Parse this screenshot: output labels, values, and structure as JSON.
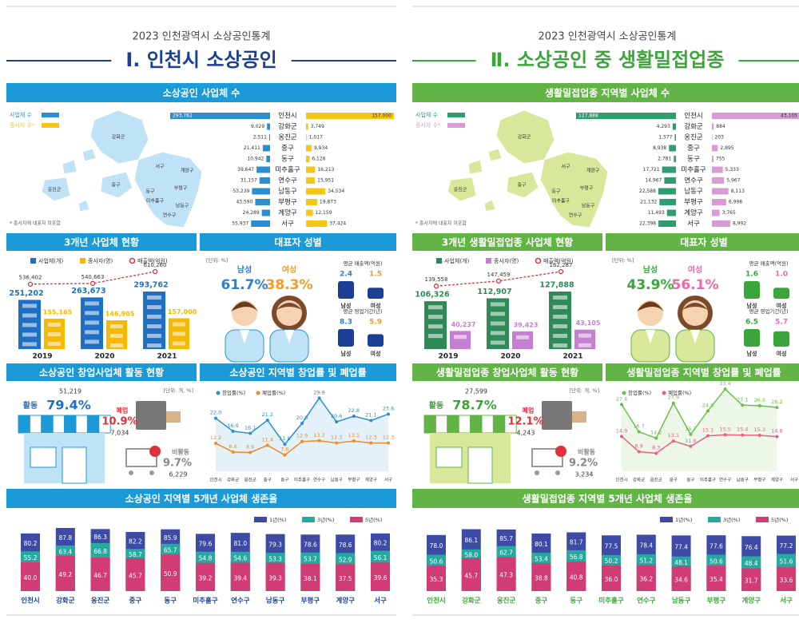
{
  "panels": [
    {
      "year_title": "2023 인천광역시 소상공인통계",
      "title": "Ⅰ. 인천시 소상공인",
      "color": "#1b3f94",
      "banner_color": "#1c9ad8",
      "map_color": "#bfe2f7",
      "regions": [
        "인천시",
        "강화군",
        "옹진군",
        "중구",
        "동구",
        "미추홀구",
        "연수구",
        "남동구",
        "부평구",
        "계양구",
        "서구"
      ],
      "counts": {
        "title": "소상공인 사업체 수",
        "map_labels": [
          "강화군",
          "옹진군",
          "중구",
          "서구",
          "계양구",
          "부평구",
          "남동구",
          "연수구",
          "미추홀구",
          "동구"
        ],
        "note": "* 종사자에 대표자 미포함",
        "series": [
          {
            "name": "사업체 수",
            "color": "#2a8fd0",
            "values": [
              293762,
              9029,
              2511,
              21411,
              10942,
              39647,
              31157,
              53239,
              43590,
              24289,
              55937
            ],
            "value_labels": [
              "293,762",
              "9,029",
              "2,511",
              "21,411",
              "10,942",
              "39,647",
              "31,157",
              "53,239",
              "43,590",
              "24,289",
              "55,937"
            ]
          },
          {
            "name": "종사자 수*",
            "color": "#f5c518",
            "values": [
              157000,
              3749,
              1017,
              9934,
              6126,
              16213,
              15951,
              34534,
              19873,
              12159,
              37424
            ],
            "value_labels": [
              "157,000",
              "3,749",
              "1,017",
              "9,934",
              "6,126",
              "16,213",
              "15,951",
              "34,534",
              "19,873",
              "12,159",
              "37,424"
            ]
          }
        ]
      },
      "three_year": {
        "title": "3개년 사업체 현황",
        "categories": [
          "2019",
          "2020",
          "2021"
        ],
        "series": [
          {
            "name": "사업체(개)",
            "color": "#1f6fc4",
            "values": [
              251202,
              263673,
              293762
            ],
            "value_labels": [
              "251,202",
              "263,673",
              "293,762"
            ]
          },
          {
            "name": "종사자(명)",
            "color": "#f6b800",
            "values": [
              155165,
              146905,
              157000
            ],
            "value_labels": [
              "155,165",
              "146,905",
              "157,000"
            ]
          },
          {
            "name": "매출액(억원)",
            "color": "#e0303c",
            "values": [
              536402,
              540663,
              610260
            ],
            "value_labels": [
              "536,402",
              "540,663",
              "610,260"
            ]
          }
        ]
      },
      "gender": {
        "title": "대표자 성별",
        "unit": "[단위: %]",
        "labels": [
          "남성",
          "여성"
        ],
        "colors": [
          "#2b7fd0",
          "#f29b2a"
        ],
        "values": [
          61.7,
          38.3
        ],
        "value_labels": [
          "61.7%",
          "38.3%"
        ],
        "sales": {
          "title": "평균 매출액(억원)",
          "values": [
            2.4,
            1.5
          ]
        },
        "period": {
          "title": "평균 영업기간(년)",
          "values": [
            8.3,
            5.9
          ]
        }
      },
      "activity": {
        "title": "소상공인 창업사업체 활동 현황",
        "unit": "[단위: 개, %]",
        "items": [
          {
            "name": "활동",
            "color": "#1f6fc4",
            "value": 79.4,
            "value_label": "79.4%",
            "count": 51219,
            "count_label": "51,219"
          },
          {
            "name": "폐업",
            "color": "#e0303c",
            "value": 10.9,
            "value_label": "10.9%",
            "count": 7034,
            "count_label": "7,034"
          },
          {
            "name": "비활동",
            "color": "#888888",
            "value": 9.7,
            "value_label": "9.7%",
            "count": 6229,
            "count_label": "6,229"
          }
        ]
      },
      "rates": {
        "title": "소상공인 지역별 창업률 및 폐업률",
        "series": [
          {
            "name": "창업률(%)",
            "color": "#2a8fd0",
            "values": [
              22.0,
              16.9,
              16.1,
              21.2,
              11.8,
              20.0,
              29.9,
              20.6,
              22.8,
              21.1,
              23.6
            ],
            "value_labels": [
              "22.0",
              "16.9",
              "16.1",
              "21.2",
              "11.8",
              "20.0",
              "29.9",
              "20.6",
              "22.8",
              "21.1",
              "23.6"
            ]
          },
          {
            "name": "폐업률(%)",
            "color": "#f08a2a",
            "values": [
              12.2,
              8.8,
              8.6,
              11.4,
              7.6,
              12.9,
              13.2,
              12.3,
              13.1,
              12.3,
              12.3
            ]
          }
        ]
      },
      "survival": {
        "title": "소상공인 지역별 5개년 사업체 생존율",
        "series": [
          {
            "name": "1년(%)",
            "color": "#3d4aa6",
            "values": [
              80.2,
              87.8,
              86.3,
              82.2,
              85.9,
              79.6,
              81.0,
              79.3,
              78.6,
              78.6,
              80.2
            ],
            "value_labels": [
              "80.2",
              "87.8",
              "86.3",
              "82.2",
              "85.9",
              "79.6",
              "81.0",
              "79.3",
              "78.6",
              "78.6",
              "80.2"
            ]
          },
          {
            "name": "3년(%)",
            "color": "#27a9a0",
            "values": [
              55.2,
              63.4,
              66.8,
              58.7,
              65.7,
              54.8,
              54.6,
              53.3,
              53.7,
              52.9,
              56.1
            ]
          },
          {
            "name": "5년(%)",
            "color": "#d23c74",
            "values": [
              40.0,
              49.2,
              46.7,
              45.7,
              50.9,
              39.2,
              39.4,
              39.3,
              38.1,
              37.5,
              39.6
            ],
            "value_labels": [
              "40.0",
              "49.2",
              "46.7",
              "45.7",
              "50.9",
              "39.2",
              "39.4",
              "39.3",
              "38.1",
              "37.5",
              "39.6"
            ]
          }
        ]
      }
    },
    {
      "year_title": "2023 인천광역시 소상공인통계",
      "title": "Ⅱ. 소상공인 중 생활밀접업종",
      "color": "#3aa53a",
      "banner_color": "#62b446",
      "map_color": "#d7e89a",
      "regions": [
        "인천시",
        "강화군",
        "옹진군",
        "중구",
        "동구",
        "미추홀구",
        "연수구",
        "남동구",
        "부평구",
        "계양구",
        "서구"
      ],
      "counts": {
        "title": "생활밀접업종 지역별 사업체 수",
        "map_labels": [
          "강화군",
          "옹진군",
          "중구",
          "서구",
          "계양구",
          "부평구",
          "남동구",
          "연수구",
          "미추홀구",
          "동구"
        ],
        "note": "* 종사자에 대표자 미포함",
        "series": [
          {
            "name": "사업체 수",
            "color": "#2e9e6e",
            "values": [
              127888,
              4293,
              1577,
              8938,
              2781,
              17721,
              14967,
              22588,
              21132,
              11493,
              22398
            ],
            "value_labels": [
              "127,888",
              "4,293",
              "1,577",
              "8,938",
              "2,781",
              "17,721",
              "14,967",
              "22,588",
              "21,132",
              "11,493",
              "22,398"
            ]
          },
          {
            "name": "종사자 수*",
            "color": "#d89bd3",
            "values": [
              43105,
              884,
              203,
              2895,
              755,
              5333,
              5967,
              8113,
              6998,
              3765,
              8992
            ],
            "value_labels": [
              "43,105",
              "884",
              "203",
              "2,895",
              "755",
              "5,333",
              "5,967",
              "8,113",
              "6,998",
              "3,765",
              "8,992"
            ]
          }
        ]
      },
      "three_year": {
        "title": "3개년 생활밀접업종 사업체 현황",
        "categories": [
          "2019",
          "2020",
          "2021"
        ],
        "series": [
          {
            "name": "사업체(개)",
            "color": "#2e8b57",
            "values": [
              106326,
              112907,
              127888
            ],
            "value_labels": [
              "106,326",
              "112,907",
              "127,888"
            ]
          },
          {
            "name": "종사자(명)",
            "color": "#c57fd1",
            "values": [
              40237,
              39423,
              43105
            ],
            "value_labels": [
              "40,237",
              "39,423",
              "43,105"
            ]
          },
          {
            "name": "매출액(억원)",
            "color": "#e0303c",
            "values": [
              139558,
              147459,
              162287
            ],
            "value_labels": [
              "139,558",
              "147,459",
              "162,287"
            ]
          }
        ]
      },
      "gender": {
        "title": "대표자 성별",
        "unit": "[단위: %]",
        "labels": [
          "남성",
          "여성"
        ],
        "colors": [
          "#3aa53a",
          "#e86aa6"
        ],
        "values": [
          43.9,
          56.1
        ],
        "value_labels": [
          "43.9%",
          "56.1%"
        ],
        "sales": {
          "title": "평균 매출액(억원)",
          "values": [
            1.6,
            1.0
          ],
          "value_labels": [
            "1.6",
            "1.0"
          ]
        },
        "period": {
          "title": "평균 영업기간(년)",
          "values": [
            6.5,
            5.7
          ]
        }
      },
      "activity": {
        "title": "생활밀접업종 창업사업체 활동 현황",
        "unit": "[단위: 개, %]",
        "items": [
          {
            "name": "활동",
            "color": "#3aa53a",
            "value": 78.7,
            "value_label": "78.7%",
            "count": 27599,
            "count_label": "27,599"
          },
          {
            "name": "폐업",
            "color": "#e0303c",
            "value": 12.1,
            "value_label": "12.1%",
            "count": 4243,
            "count_label": "4,243"
          },
          {
            "name": "비활동",
            "color": "#888888",
            "value": 9.2,
            "value_label": "9.2%",
            "count": 3234,
            "count_label": "3,234"
          }
        ]
      },
      "rates": {
        "title": "생활밀접업종 지역별 창업률 및 폐업률",
        "series": [
          {
            "name": "창업률(%)",
            "color": "#6abf4b",
            "values": [
              27.4,
              16.7,
              14.2,
              27.9,
              15.7,
              24.9,
              33.4,
              27.1,
              26.9,
              26.2,
              null
            ]
          },
          {
            "name": "폐업률(%)",
            "color": "#e8608a",
            "values": [
              14.9,
              8.9,
              8.3,
              13.1,
              11.0,
              15.1,
              15.5,
              15.4,
              15.3,
              14.8,
              null
            ],
            "value_labels": [
              "14.9",
              "8.9",
              "8.3",
              "13.1",
              "11.0",
              "15.1",
              "15.5",
              "15.4",
              "15.3",
              "14.8",
              null
            ]
          }
        ]
      },
      "survival": {
        "title": "생활밀접업종 지역별 5개년 사업체 생존율",
        "series": [
          {
            "name": "1년(%)",
            "color": "#3d4aa6",
            "values": [
              78.0,
              86.1,
              85.7,
              80.1,
              81.7,
              77.5,
              78.4,
              77.4,
              77.6,
              76.4,
              77.2
            ],
            "value_labels": [
              "78.0",
              "86.1",
              "85.7",
              "80.1",
              "81.7",
              "77.5",
              "78.4",
              "77.4",
              "77.6",
              "76.4",
              "77.2"
            ]
          },
          {
            "name": "3년(%)",
            "color": "#27a9a0",
            "values": [
              50.6,
              58.0,
              62.7,
              53.4,
              56.8,
              50.2,
              51.2,
              48.1,
              50.6,
              48.4,
              51.6
            ],
            "value_labels": [
              "50.6",
              "58.0",
              "62.7",
              "53.4",
              "56.8",
              "50.2",
              "51.2",
              "48.1",
              "50.6",
              "48.4",
              "51.6"
            ]
          },
          {
            "name": "5년(%)",
            "color": "#d23c74",
            "values": [
              35.3,
              45.7,
              47.3,
              38.8,
              40.8,
              36.0,
              36.2,
              34.6,
              35.4,
              31.7,
              33.6
            ],
            "value_labels": [
              "35.3",
              "45.7",
              "47.3",
              "38.8",
              "40.8",
              "36.0",
              "36.2",
              "34.6",
              "35.4",
              "31.7",
              "33.6"
            ]
          }
        ]
      }
    }
  ]
}
